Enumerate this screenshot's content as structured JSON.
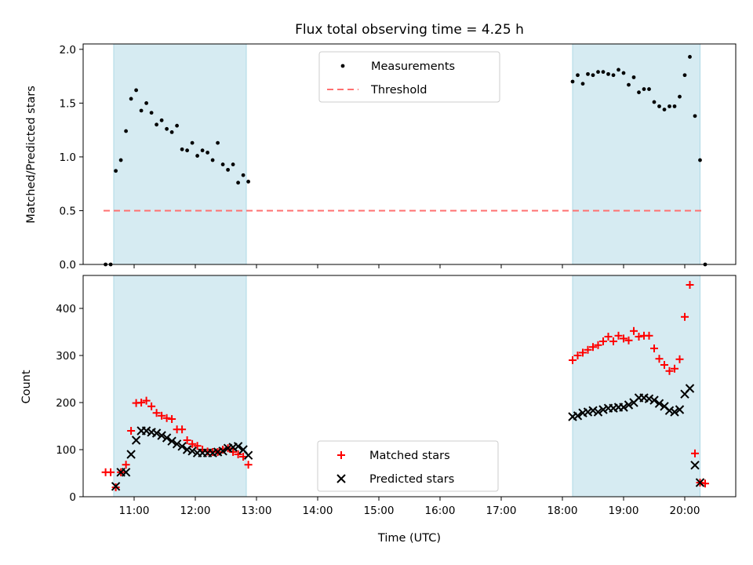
{
  "chart_data": {
    "type": "scatter",
    "title": "Flux total observing time = 4.25 h",
    "xlabel": "Time (UTC)",
    "x_ticks": [
      "11:00",
      "12:00",
      "13:00",
      "14:00",
      "15:00",
      "16:00",
      "17:00",
      "18:00",
      "19:00",
      "20:00"
    ],
    "colors": {
      "threshold": "#ff7070",
      "band": "#add8e6",
      "matched": "#ff0000",
      "predicted": "#000000"
    },
    "shaded_intervals": [
      [
        "10:40",
        "12:50"
      ],
      [
        "18:10",
        "20:15"
      ]
    ],
    "panels": [
      {
        "ylabel": "Matched/Predicted stars",
        "ylim": [
          0,
          2.05
        ],
        "y_ticks": [
          "0.0",
          "0.5",
          "1.0",
          "1.5",
          "2.0"
        ],
        "legend": [
          "Measurements",
          "Threshold"
        ],
        "legend_position": "top-center",
        "threshold": 0.5,
        "threshold_xrange": [
          "10:30",
          "20:20"
        ],
        "series": [
          {
            "name": "Measurements",
            "marker": "dot",
            "points": [
              [
                "10:32",
                0.0
              ],
              [
                "10:37",
                0.0
              ],
              [
                "10:42",
                0.87
              ],
              [
                "10:47",
                0.97
              ],
              [
                "10:52",
                1.24
              ],
              [
                "10:57",
                1.54
              ],
              [
                "11:02",
                1.62
              ],
              [
                "11:07",
                1.43
              ],
              [
                "11:12",
                1.5
              ],
              [
                "11:17",
                1.41
              ],
              [
                "11:22",
                1.3
              ],
              [
                "11:27",
                1.34
              ],
              [
                "11:32",
                1.26
              ],
              [
                "11:37",
                1.23
              ],
              [
                "11:42",
                1.29
              ],
              [
                "11:47",
                1.07
              ],
              [
                "11:52",
                1.06
              ],
              [
                "11:57",
                1.13
              ],
              [
                "12:02",
                1.01
              ],
              [
                "12:07",
                1.06
              ],
              [
                "12:12",
                1.04
              ],
              [
                "12:17",
                0.97
              ],
              [
                "12:22",
                1.13
              ],
              [
                "12:27",
                0.93
              ],
              [
                "12:32",
                0.88
              ],
              [
                "12:37",
                0.93
              ],
              [
                "12:42",
                0.76
              ],
              [
                "12:47",
                0.83
              ],
              [
                "12:52",
                0.77
              ],
              [
                "18:10",
                1.7
              ],
              [
                "18:15",
                1.76
              ],
              [
                "18:20",
                1.68
              ],
              [
                "18:25",
                1.77
              ],
              [
                "18:30",
                1.76
              ],
              [
                "18:35",
                1.79
              ],
              [
                "18:40",
                1.79
              ],
              [
                "18:45",
                1.77
              ],
              [
                "18:50",
                1.76
              ],
              [
                "18:55",
                1.81
              ],
              [
                "19:00",
                1.78
              ],
              [
                "19:05",
                1.67
              ],
              [
                "19:10",
                1.74
              ],
              [
                "19:15",
                1.6
              ],
              [
                "19:20",
                1.63
              ],
              [
                "19:25",
                1.63
              ],
              [
                "19:30",
                1.51
              ],
              [
                "19:35",
                1.47
              ],
              [
                "19:40",
                1.44
              ],
              [
                "19:45",
                1.47
              ],
              [
                "19:50",
                1.47
              ],
              [
                "19:55",
                1.56
              ],
              [
                "20:00",
                1.76
              ],
              [
                "20:05",
                1.93
              ],
              [
                "20:10",
                1.38
              ],
              [
                "20:15",
                0.97
              ],
              [
                "20:20",
                0.0
              ]
            ]
          }
        ]
      },
      {
        "ylabel": "Count",
        "ylim": [
          0,
          470
        ],
        "y_ticks": [
          "0",
          "100",
          "200",
          "300",
          "400"
        ],
        "legend": [
          "Matched stars",
          "Predicted stars"
        ],
        "legend_position": "bottom-center",
        "series": [
          {
            "name": "Matched stars",
            "marker": "plus",
            "points": [
              [
                "10:32",
                52
              ],
              [
                "10:37",
                52
              ],
              [
                "10:42",
                20
              ],
              [
                "10:47",
                52
              ],
              [
                "10:52",
                68
              ],
              [
                "10:57",
                140
              ],
              [
                "11:02",
                199
              ],
              [
                "11:07",
                200
              ],
              [
                "11:12",
                204
              ],
              [
                "11:17",
                192
              ],
              [
                "11:22",
                178
              ],
              [
                "11:27",
                172
              ],
              [
                "11:32",
                167
              ],
              [
                "11:37",
                165
              ],
              [
                "11:42",
                143
              ],
              [
                "11:47",
                143
              ],
              [
                "11:52",
                120
              ],
              [
                "11:57",
                112
              ],
              [
                "12:02",
                108
              ],
              [
                "12:07",
                100
              ],
              [
                "12:12",
                96
              ],
              [
                "12:17",
                95
              ],
              [
                "12:22",
                95
              ],
              [
                "12:27",
                100
              ],
              [
                "12:32",
                103
              ],
              [
                "12:37",
                95
              ],
              [
                "12:42",
                90
              ],
              [
                "12:47",
                85
              ],
              [
                "12:52",
                68
              ],
              [
                "18:10",
                290
              ],
              [
                "18:15",
                300
              ],
              [
                "18:20",
                306
              ],
              [
                "18:25",
                312
              ],
              [
                "18:30",
                318
              ],
              [
                "18:35",
                322
              ],
              [
                "18:40",
                330
              ],
              [
                "18:45",
                340
              ],
              [
                "18:50",
                330
              ],
              [
                "18:55",
                342
              ],
              [
                "19:00",
                336
              ],
              [
                "19:05",
                332
              ],
              [
                "19:10",
                352
              ],
              [
                "19:15",
                340
              ],
              [
                "19:20",
                342
              ],
              [
                "19:25",
                342
              ],
              [
                "19:30",
                315
              ],
              [
                "19:35",
                293
              ],
              [
                "19:40",
                280
              ],
              [
                "19:45",
                267
              ],
              [
                "19:50",
                272
              ],
              [
                "19:55",
                292
              ],
              [
                "20:00",
                382
              ],
              [
                "20:05",
                450
              ],
              [
                "20:10",
                92
              ],
              [
                "20:15",
                30
              ],
              [
                "20:20",
                28
              ]
            ]
          },
          {
            "name": "Predicted stars",
            "marker": "x",
            "points": [
              [
                "10:42",
                22
              ],
              [
                "10:47",
                52
              ],
              [
                "10:52",
                52
              ],
              [
                "10:57",
                90
              ],
              [
                "11:02",
                120
              ],
              [
                "11:07",
                140
              ],
              [
                "11:12",
                140
              ],
              [
                "11:17",
                137
              ],
              [
                "11:22",
                135
              ],
              [
                "11:27",
                130
              ],
              [
                "11:32",
                125
              ],
              [
                "11:37",
                118
              ],
              [
                "11:42",
                112
              ],
              [
                "11:47",
                107
              ],
              [
                "11:52",
                100
              ],
              [
                "11:57",
                97
              ],
              [
                "12:02",
                93
              ],
              [
                "12:07",
                93
              ],
              [
                "12:12",
                93
              ],
              [
                "12:17",
                93
              ],
              [
                "12:22",
                95
              ],
              [
                "12:27",
                97
              ],
              [
                "12:32",
                103
              ],
              [
                "12:37",
                105
              ],
              [
                "12:42",
                107
              ],
              [
                "12:47",
                100
              ],
              [
                "12:52",
                88
              ],
              [
                "18:10",
                170
              ],
              [
                "18:15",
                172
              ],
              [
                "18:20",
                178
              ],
              [
                "18:25",
                180
              ],
              [
                "18:30",
                183
              ],
              [
                "18:35",
                180
              ],
              [
                "18:40",
                185
              ],
              [
                "18:45",
                188
              ],
              [
                "18:50",
                188
              ],
              [
                "18:55",
                190
              ],
              [
                "19:00",
                190
              ],
              [
                "19:05",
                195
              ],
              [
                "19:10",
                200
              ],
              [
                "19:15",
                210
              ],
              [
                "19:20",
                210
              ],
              [
                "19:25",
                208
              ],
              [
                "19:30",
                205
              ],
              [
                "19:35",
                198
              ],
              [
                "19:40",
                192
              ],
              [
                "19:45",
                183
              ],
              [
                "19:50",
                180
              ],
              [
                "19:55",
                185
              ],
              [
                "20:00",
                218
              ],
              [
                "20:05",
                230
              ],
              [
                "20:10",
                67
              ],
              [
                "20:15",
                30
              ]
            ]
          }
        ]
      }
    ]
  }
}
